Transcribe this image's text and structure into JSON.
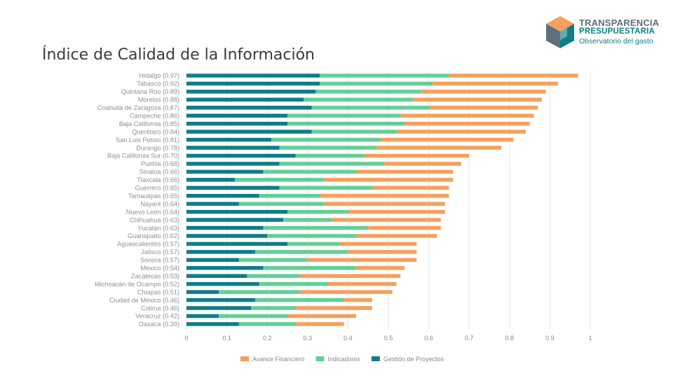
{
  "title": "Índice de Calidad de la Información",
  "logo": {
    "line1": "TRANSPARENCIA",
    "line2": "PRESUPUESTARIA",
    "line3": "Observatorio del gasto",
    "icon": "cube-logo-icon"
  },
  "colors": {
    "avance_financiero": "#f5a05c",
    "indicadores": "#62d095",
    "gestion_proyectos": "#0e7e86",
    "grid": "#e6e6e6",
    "axis_text": "#888888",
    "label_text": "#909090",
    "title_text": "#3b3b3b"
  },
  "chart_data": {
    "type": "bar",
    "orientation": "horizontal",
    "stacked": true,
    "xlim": [
      0,
      1
    ],
    "xticks": [
      "0",
      "0.1",
      "0.2",
      "0.3",
      "0.4",
      "0.5",
      "0.6",
      "0.7",
      "0.8",
      "0.9",
      "1"
    ],
    "grid": true,
    "legend_position": "bottom",
    "categories": [
      "Hidalgo (0.97)",
      "Tabasco (0.92)",
      "Quintana Roo (0.89)",
      "Morelos (0.88)",
      "Coahuila de Zaragoza (0.87)",
      "Campeche (0.86)",
      "Baja California (0.85)",
      "Querétaro (0.84)",
      "San Luis Potosí (0.81)",
      "Durango (0.78)",
      "Baja California Sur (0.70)",
      "Puebla (0.68)",
      "Sinaloa (0.66)",
      "Tlaxcala (0.66)",
      "Guerrero (0.65)",
      "Tamaulipas (0.65)",
      "Nayarit (0.64)",
      "Nuevo León (0.64)",
      "Chihuahua (0.63)",
      "Yucatán (0.63)",
      "Guanajuato (0.62)",
      "Aguascalientes (0.57)",
      "Jalisco (0.57)",
      "Sonora (0.57)",
      "México (0.54)",
      "Zacatecas (0.53)",
      "Michoacán de Ocampo (0.52)",
      "Chiapas (0.51)",
      "Ciudad de México (0.46)",
      "Colima (0.46)",
      "Veracruz (0.42)",
      "Oaxaca (0.39)"
    ],
    "series": [
      {
        "name": "Gestión de Proyectos",
        "values": [
          0.33,
          0.33,
          0.32,
          0.29,
          0.31,
          0.25,
          0.25,
          0.31,
          0.21,
          0.23,
          0.27,
          0.23,
          0.19,
          0.12,
          0.23,
          0.18,
          0.13,
          0.25,
          0.24,
          0.19,
          0.2,
          0.25,
          0.17,
          0.13,
          0.19,
          0.15,
          0.18,
          0.08,
          0.17,
          0.16,
          0.08,
          0.13
        ]
      },
      {
        "name": "Indicadores",
        "values": [
          0.32,
          0.28,
          0.26,
          0.27,
          0.29,
          0.28,
          0.29,
          0.21,
          0.27,
          0.24,
          0.17,
          0.26,
          0.23,
          0.22,
          0.23,
          0.15,
          0.21,
          0.15,
          0.12,
          0.26,
          0.22,
          0.13,
          0.23,
          0.17,
          0.23,
          0.13,
          0.17,
          0.2,
          0.22,
          0.11,
          0.17,
          0.14
        ]
      },
      {
        "name": "Avance Financiero",
        "values": [
          0.32,
          0.31,
          0.31,
          0.32,
          0.27,
          0.33,
          0.31,
          0.32,
          0.33,
          0.31,
          0.26,
          0.19,
          0.24,
          0.32,
          0.19,
          0.32,
          0.3,
          0.24,
          0.27,
          0.18,
          0.2,
          0.19,
          0.17,
          0.27,
          0.12,
          0.25,
          0.17,
          0.23,
          0.07,
          0.19,
          0.17,
          0.12
        ]
      }
    ],
    "legend": [
      "Avance Financiero",
      "Indicadores",
      "Gestión de Proyectos"
    ]
  }
}
